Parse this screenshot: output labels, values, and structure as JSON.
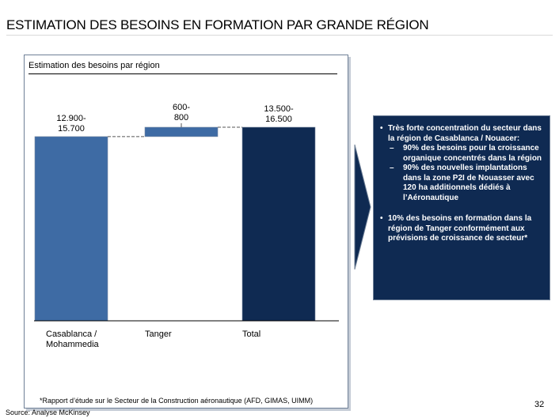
{
  "slide": {
    "title": "ESTIMATION DES BESOINS EN FORMATION PAR GRANDE RÉGION",
    "page_number": "32"
  },
  "chart_panel": {
    "title": "Estimation des besoins par région"
  },
  "chart_data": {
    "type": "bar",
    "subtype": "waterfall",
    "title": "Estimation des besoins par région",
    "categories": [
      "Casablanca / Mohammedia",
      "Tanger",
      "Total"
    ],
    "category_labels": [
      [
        "Casablanca /",
        "Mohammedia"
      ],
      [
        "Tanger"
      ],
      [
        "Total"
      ]
    ],
    "ranges": [
      [
        12900,
        15700
      ],
      [
        600,
        800
      ],
      [
        13500,
        16500
      ]
    ],
    "values": [
      15700,
      800,
      16500
    ],
    "bases": [
      0,
      15700,
      0
    ],
    "value_labels": [
      [
        "12.900-",
        "15.700"
      ],
      [
        "600-",
        "800"
      ],
      [
        "13.500-",
        "16.500"
      ]
    ],
    "colors": [
      "#3e6ba4",
      "#3e6ba4",
      "#0f2a52"
    ],
    "ylim": [
      0,
      16500
    ],
    "xlabel": "",
    "ylabel": ""
  },
  "bullets": {
    "main": "Très forte concentration du secteur dans la région de Casablanca / Nouacer:",
    "subs": [
      "90% des besoins pour la croissance organique concentrés dans la région",
      "90% des nouvelles implantations dans la zone P2I de Nouasser avec 120 ha additionnels dédiés à l’Aéronautique"
    ],
    "second": "10% des besoins en formation dans la région de Tanger conformément aux prévisions de croissance de secteur*"
  },
  "footer": {
    "footnote": "*Rapport d’étude sur le Secteur de la Construction aéronautique (AFD, GIMAS, UIMM)",
    "source": "Source:  Analyse McKinsey"
  },
  "colors": {
    "bar_regional": "#3e6ba4",
    "bar_total": "#0f2a52",
    "panel_dark": "#0f2a52"
  }
}
